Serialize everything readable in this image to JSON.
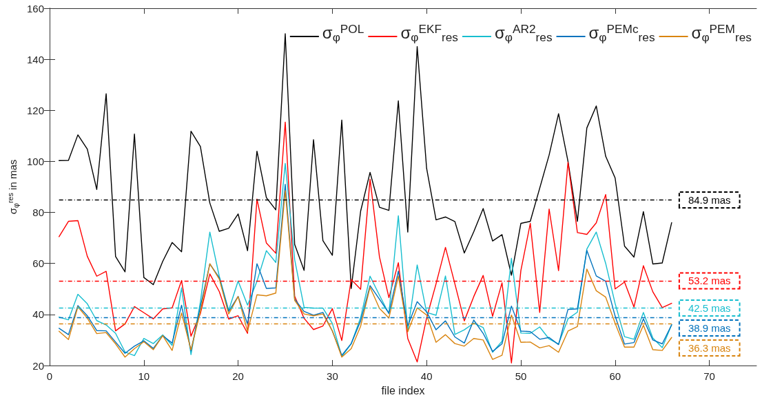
{
  "chart_data": {
    "type": "line",
    "xlabel": "file index",
    "ylabel": "σ$_{φ}$$^{res}$ in mas",
    "x": [
      1,
      2,
      3,
      4,
      5,
      6,
      7,
      8,
      9,
      10,
      11,
      12,
      13,
      14,
      15,
      16,
      17,
      18,
      19,
      20,
      21,
      22,
      23,
      24,
      25,
      26,
      27,
      28,
      29,
      30,
      31,
      32,
      33,
      34,
      35,
      36,
      37,
      38,
      39,
      40,
      41,
      42,
      43,
      44,
      45,
      46,
      47,
      48,
      49,
      50,
      51,
      52,
      53,
      54,
      55,
      56,
      57,
      58,
      59,
      60,
      61,
      62,
      63,
      64,
      65,
      66
    ],
    "series": [
      {
        "name": "σ$_{φ}$$^{POL}$",
        "color": "#000000",
        "values": [
          100.3,
          100.4,
          110.4,
          104.8,
          89,
          126.5,
          62.7,
          56.7,
          110.7,
          54.5,
          51.7,
          60.8,
          68.2,
          64.6,
          111.8,
          105.8,
          83.7,
          72.6,
          73.8,
          79.4,
          65,
          104,
          85.8,
          81,
          150,
          67.5,
          57.3,
          108.5,
          68.9,
          63.2,
          116.2,
          50.2,
          80.5,
          95.7,
          82,
          80.8,
          123.7,
          72.3,
          145,
          97.3,
          77.1,
          78.2,
          76.4,
          64.1,
          72.4,
          81.5,
          68.8,
          71.3,
          55.4,
          75.7,
          76.5,
          89.5,
          102.5,
          118.7,
          100,
          76.5,
          113.1,
          121.7,
          102,
          93.5,
          66.8,
          62.5,
          80.3,
          59.8,
          60.2,
          76
        ]
      },
      {
        "name": "σ$_{φ}$$^{EKF}$$_{res}$",
        "color": "#ff0000",
        "values": [
          70.5,
          76.5,
          76.8,
          62.8,
          55,
          56.9,
          33.6,
          36.3,
          43.1,
          40.7,
          38.3,
          42.2,
          42.6,
          53.3,
          31.5,
          40.4,
          55.9,
          49,
          38.2,
          39.5,
          32.6,
          85.2,
          68,
          64,
          115.4,
          47.2,
          38.5,
          34.1,
          35.5,
          42.3,
          29.8,
          53.7,
          49.9,
          93,
          62.5,
          46.6,
          60.3,
          30.6,
          21.4,
          38.6,
          52,
          66.3,
          52,
          37.5,
          47,
          55.3,
          39.3,
          52.4,
          21,
          57.2,
          75.7,
          40.8,
          81.3,
          57.2,
          99.6,
          72.1,
          71.4,
          75.9,
          87,
          50,
          52.7,
          42.9,
          59.1,
          48.9,
          42.7,
          44.4
        ]
      },
      {
        "name": "σ$_{φ}$$^{AR2}$$_{res}$",
        "color": "#17becf",
        "values": [
          39,
          37.9,
          47.9,
          44.2,
          37.6,
          35.9,
          32.6,
          25.3,
          23.9,
          30.6,
          28.6,
          32,
          27.9,
          50.4,
          24.3,
          45,
          72.3,
          55,
          41.6,
          53.1,
          43.7,
          53,
          65,
          60.4,
          99.2,
          61.5,
          42.8,
          42.5,
          42.5,
          36.5,
          23.5,
          28.5,
          38.8,
          55,
          47.5,
          40.3,
          78.7,
          33.5,
          59.4,
          40.8,
          39.7,
          55.1,
          32.2,
          34,
          36.6,
          34.9,
          25.2,
          29.5,
          62,
          32.7,
          32.6,
          35.1,
          30.4,
          28.4,
          38.3,
          40.9,
          65.6,
          72.3,
          60,
          44.3,
          31.3,
          30.3,
          40.8,
          30.8,
          27,
          36
        ]
      },
      {
        "name": "σ$_{φ}$$^{PEMc}$$_{res}$",
        "color": "#0072bd",
        "values": [
          34.6,
          32.1,
          43.5,
          39.5,
          33.7,
          33.6,
          29.2,
          24.8,
          27.6,
          29.7,
          26.7,
          31.7,
          28.8,
          43.6,
          25.7,
          43.1,
          59.8,
          54.4,
          41.2,
          47.1,
          36.2,
          59.9,
          50.2,
          50.4,
          91,
          46,
          41.2,
          39.7,
          40.8,
          33.5,
          24,
          28.6,
          37.5,
          51.3,
          46,
          40.5,
          57,
          35.6,
          45,
          41,
          34,
          37.5,
          31.2,
          28.8,
          37.8,
          32.6,
          25.5,
          28.5,
          43.3,
          33.5,
          33.3,
          30.3,
          31,
          28.2,
          42,
          42.2,
          65.1,
          55.1,
          53,
          39.4,
          28.4,
          29,
          38.3,
          30,
          28.5,
          36
        ]
      },
      {
        "name": "σ$_{φ}$$^{PEM}$$_{res}$",
        "color": "#d9840f",
        "values": [
          33.4,
          30.2,
          43,
          38.6,
          32.5,
          32.9,
          28.5,
          23.3,
          26.6,
          29.3,
          26.2,
          31.7,
          25.9,
          40.6,
          26.1,
          41.2,
          59.9,
          53.9,
          40.2,
          47,
          33.4,
          47.7,
          47.3,
          48.4,
          88.5,
          45.5,
          40.2,
          39.5,
          40.2,
          33.6,
          23.3,
          26.6,
          35.4,
          50.7,
          42.4,
          38.6,
          55,
          33.2,
          42.6,
          39.8,
          29.1,
          32.1,
          28.6,
          27.6,
          30.6,
          30,
          22.4,
          24,
          39.8,
          29.1,
          29.2,
          26.9,
          27.8,
          25.2,
          33.5,
          35.3,
          57.8,
          49.3,
          46.8,
          36.6,
          27.2,
          27.2,
          35.8,
          26.2,
          25.9,
          31
        ]
      }
    ],
    "ref_lines": [
      {
        "axis": "y",
        "value": 84.9,
        "label": "84.9 mas",
        "color": "#000000",
        "line_style": "dashed"
      },
      {
        "axis": "y",
        "value": 53.2,
        "label": "53.2 mas",
        "color": "#ff0000",
        "line_style": "dashed"
      },
      {
        "axis": "y",
        "value": 42.5,
        "label": "42.5 mas",
        "color": "#17becf",
        "line_style": "dashed"
      },
      {
        "axis": "y",
        "value": 38.9,
        "label": "38.9 mas",
        "color": "#0072bd",
        "line_style": "dashed"
      },
      {
        "axis": "y",
        "value": 36.3,
        "label": "36.3 mas",
        "color": "#d9840f",
        "line_style": "dashed"
      }
    ],
    "xlim": [
      0,
      75
    ],
    "xticks": [
      0,
      10,
      20,
      30,
      40,
      50,
      60,
      70
    ],
    "ylim": [
      20,
      160
    ],
    "yticks": [
      20,
      40,
      60,
      80,
      100,
      120,
      140,
      160
    ],
    "grid": false,
    "legend": "top right",
    "marker": "none",
    "line_style": "solid"
  }
}
